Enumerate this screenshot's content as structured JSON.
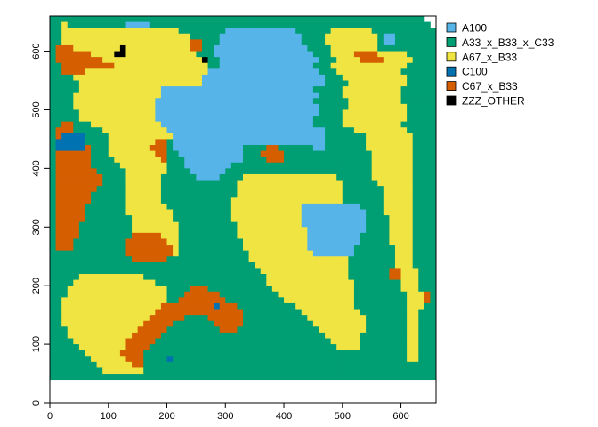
{
  "chart_data": {
    "type": "heatmap",
    "title": "",
    "xlabel": "",
    "ylabel": "",
    "xlim": [
      0,
      660
    ],
    "ylim": [
      0,
      660
    ],
    "x_ticks": [
      0,
      100,
      200,
      300,
      400,
      500,
      600
    ],
    "y_ticks": [
      0,
      100,
      200,
      300,
      400,
      500,
      600
    ],
    "x_tick_labels": [
      "0",
      "100",
      "200",
      "300",
      "400",
      "500",
      "600"
    ],
    "y_tick_labels": [
      "0",
      "100",
      "200",
      "300",
      "400",
      "500",
      "600"
    ],
    "cell_size": 10,
    "legend_position": "right",
    "legend": [
      {
        "label": "A100",
        "color": "#56B4E9"
      },
      {
        "label": "A33_x_B33_x_C33",
        "color": "#009E73"
      },
      {
        "label": "A67_x_B33",
        "color": "#F0E442"
      },
      {
        "label": "C100",
        "color": "#0072B2"
      },
      {
        "label": "C67_x_B33",
        "color": "#D55E00"
      },
      {
        "label": "ZZZ_OTHER",
        "color": "#000000"
      }
    ],
    "rows_top_to_bottom": [
      "BBBBBBBBBBBBBBBBBBBBBBBBBBBBBBBBBBBBBBBBBBBBBBBBBBBBBBBBBBBBBBBB",
      "BBCBBBBBBBBBBAAAABBBBBBBBBBBBBBBBBBBBBBBBBBBBBBBBBBBBBBBBBBBBBBBB",
      "BBCCCCCCCCCCCCCCCCCCCCBBBBBBBBAAAAAAAAAAAABBBBBBCCCCCCCBBBBBBBBBBB",
      "BBCCCCCCCCCCCCCCCCCCCCCCBBBBBAAAAAAAAAAAAAABBBBCCCCCCCCCBAABBBBBBB",
      "BBCCCCCCCCCCCCCCCCCCCCCCEEBBBAAAAAAAAAAAAAABBBBCCCCCCCCCBAABBBBBBB",
      "BEEECCCCCCCCFCCCCCCCCCCCEEBBAAAAAAAAAAAAAAAABBBBCCCCCCCCBBBBBBBBBB",
      "BEEEEEECCCCFFCCCCCCCCCCCCBBBAAAAAAAAAAAAAAAAABBBCCCCEEEECCCCCBBBBB",
      "BEEEEEEEECCCCCCCCCCCCCCCCCFBBAAAAAAAAAAAAAAAAABBBCCCCEEEECCCCCBBBB",
      "BBEEEEEEEEECCCCCCCCCCCCCCCCBBAAAAAAAAAAAAAAAABBBCCCCCCCCCCCCCBBBBB",
      "BBEEEECCCCCCCCCCCCCCCCCCCCCAAAAAAAAAAAAAAAAAAABBBCCCCCCCCCCCBBBBBB",
      "BBBBCCCCCCCCCCCCCCCCCCCCCCAAAAAAAAAAAAAAAAAAAAABBBCCCCCCCCCCCBBBBB",
      "BBBBBCCCCCCCCCCCCCCCCCCCCCAAAAAAAAAAAAAAAAAAAAABBBBCCCCCCCCCCBBBBB",
      "BBBBBCCCCCCCCCCCCCCAAAAAAAAAAAAAAAAAAAAAAAAAABBBBBCCCCCCCCCCBBBBBB",
      "BBBBCCCCCCCCCCCCCCCAAAAAAAAAAAAAAAAAAAAAAAAAAABBBBCCCCCCCCCCBBBBBB",
      "BBBBCCCCCCCCCCCCCCAAAAAAAAAAAAAAAAAAAAAAAAAAABBBBBBCCCCCCCCCBBBBBB",
      "BBBBCCCCCCCCCCCCCCAAAAAAAAAAAAAAAAAAAAAAAAAAAABBBBBCCCCCCCCCCBBBBB",
      "BBBBBCCCCCCCCCCCCCAAAAAAAAAAAAAAAAAAAAAAAAAAAABBBBCCCCCCCCCCCBBBBB",
      "BBBBBCCCCCCCCCCCCCAAAAAAAAAAAAAAAAAAAAAAAAAAABBBBBCCCCCCCCCCCBBBBB",
      "BBEEBBBCCCCCCCCCCCCAAAAAAAAAAAAAAAAAAAAAAAAAABBBBBCCCCCCCCCCBBBBBB",
      "BEEEBBBBBCCCCCCCCCCCAAAAAAAAAAAAAAAAAAAAAAAAAAABBBBBCCCCCCCCCBBBBB",
      "BEDDDDBBBBCCCCCCCCCCCAAAAAAAAAAAAAAAAAAAAAAAAAABBBBBBBCCCCCCCCBBBB",
      "BDDDDDBBBBCCCCCCCCEEBAAAAAAAAAAAAAAAAAAAAAAAAAABBBBBBBCCCCCCCCBBBB",
      "BDDDDDEBBBCCCCCCCEEEBAAAAAAAAAAAABBBBEEBBBBBBAABBBBBBBCCCCCCCCBBBB",
      "BEEEEEEBBBCCCCCCCCEEBBAAAAAAAAAAABBBEEEEBBBBBBBBBBBBBBBCCCCCCCBBBB",
      "BEEEEEEBBBBCCCCCCCCEBBBAAAAAAAAAABBBBEEEBBBBBBBBBBBBBBBCCCCCCCBBBB",
      "BEEEEEEBBBBBCCCCCCCCBBBAAAAAAAABBBBBBBBBBBBBBBBBBBBBBBBCCCCCCCBBBB",
      "BEEEEEEEBBBBBCCCCCCCBBBBAAAAAABBBBBBBBBBBBBBBBBBBBBBBBBCCCCCCCBBBB",
      "BEEEEEEEEBBBBCCCCCCBBBBBBAAAABBBBCCCCCCCCCCCCCCCCBBBBBBCCCCCCCBBBB",
      "BEEEEEEEEBBBBCCCCCCBBBBBBBBBBBBBCCCCCCCCCCCCCCCCCCBBBBBBCCCCCCBBBB",
      "BEEEEEEEBBBBBCCCCCCBBBBBBBBBBBBBCCCCCCCCCCCCCCCCCCBBBBBBBCCCCCBBBB",
      "BEEEEEEBBBBBBCCCCCCBBBBBBBBBBBBBCCCCCCCCCCCCCCCCCCBBBBBBBCCCCCBBBB",
      "BEEEEEEBBBBBBCCCCCCBBBBBBBBBBBBCCCCCCCCCCCCCCCCCCCBBBBBBBCCCCCBBBB",
      "BEEEEEBBBBBBBCCCCCCCBBBBBBBBBBBCCCCCCCCCCCCAAAAAAAAAABBBBCCCCCBBBB",
      "BEEEEEBBBBBBBCCCCCCCCBBBBBBBBBBCCCCCCCCCCCCAAAAAAAAAAABBBCCCCCBBBB",
      "BEEEEEBBBBBBBBCCCCCCCBBBBBBBBBBCCCCCCCCCCCCAAAAAAAAAAABBBBCCCCBBBB",
      "BEEEEBBBBBBBBBCCCCCCCCBBBBBBBBBBCCCCCCCCCCCAAAAAAAAAAABBBBCCCCBBBB",
      "BEEEEBBBBBBBBBCCCCCCCCBBBBBBBBBBCCCCCCCCCCCCAAAAAAAAAABBBBCCCCBBBB",
      "BEEEEBBBBBBBBBEEEEECCCBBBBBBBBBBCCCCCCCCCCCCAAAAAAAAABBBBBCCCCBBBB",
      "BEEEBBBBBBBBBEEEEEEECCBBBBBBBBBBBCCCCCCCCCCCAAAAAAAAABBBBBCCCCBBBB",
      "BEEEBBBBBBBBBEEEEEEEECBBBBBBBBBBBCCCCCCCCCCCAAAAAAAABBBBBBBCCCBBBB",
      "BBBBBBBBBBBBBEEEEEEEECBBBBBBBBBBBBCCCCCCCCCCCAAAAAAABBBBBBBCCCBBBB",
      "BBBBBBBBBBBBBBEEEEEEBBBBBBBBBBBBBBCCCCCCCCCCCCCCCCCBBBBBBBBCCCBBBB",
      "BBBBBBBBBBBBBBBBBBBBBBBBBBBBBBBBBBBCCCCCCCCCCCCCCCCBBBBBBBBCCCBBBB",
      "BBBBBBBBBBBBBBBBBBBBBBBBBBBBBBBBBBBBCCCCCCCCCCCCCCCBBBBBBBEECCCBBB",
      "BBBBBCCCCCCCCCCCBBBBBBBBBBBBBBBBBBBBBCCCCCCCCCCCCCCBBBBBBBEECCCBBB",
      "BBBBCCCCCCCCCCCCCCBBBBBBBBBBBBBBBBBBBCCCCCCCCCCCCCCCBBBBBBBBCCCBBB",
      "BBBCCCCCCCCCCCCCCCCCBBBBEEEBBBBBBBBBBBCCCCCCCCCCCCCCBBBBBBBBCCCBBB",
      "BBBCCCCCCCCCCCCCCCCCBBBEEEEEEBBBBBBBBBBCCCCCCCCCCCCCBBBBBBBBBCCCEB",
      "BBCCCCCCCCCCCCCCCCCCBBEEEEEEEEBBBBBBBBBBCCCCCCCCCCCCBBBBBBBBBCCCEB",
      "BBCCCCCCCCCCCCCCCCCEEEEEEEEEDEEEBBBBBBBBBBCCCCCCCCCCBBBBBBBBBCCCBB",
      "BBCCCCCCCCCCCCCCCCEEEEEEEEEEEEEEEBBBBBBBBBBCCCCCCCCCCBBBBBBBBCCBBB",
      "BBCCCCCCCCCCCCCCCEEEEEEBBBBEEEEEEBBBBBBBBBBBCCCCCCCCCCBBBBBBBCCBBB",
      "BBCCCCCCCCCCCCCCEEEEEBBBBBBBEEEEEBBBBBBBBBBBBCCCCCCCCCBBBBBBBCCBBB",
      "BBBCCCCCCCCCCCCEEEEEBBBBBBBBBEEEBBBBBBBBBBBBBBCCCCCCCCBBBBBBBCCBBB",
      "BBBCCCCCCCCCCCEEEEEBBBBBBBBBBBBBBBBBBBBBBBBBBBBCCCCCCBBBBBBBBCCBBB",
      "BBBBCCCCCCCCCEEEEEBBBBBBBBBBBBBBBBBBBBBBBBBBBBBBCCCCCBBBBBBBBCCBBB",
      "BBBBBCCCCCCCCEEEEBBBBBBBBBBBBBBBBBBBBBBBBBBBBBBBBCCCCBBBBBBBBCCBBB",
      "BBBBBBCCCCCCEEEEBBBBBBBBBBBBBBBBBBBBBBBBBBBBBBBBBBBBBBBBBBBBBCCBBB",
      "BBBBBBBCCCCCCEEEBBBBDBBBBBBBBBBBBBBBBBBBBBBBBBBBBBBBBBBBBBBBBCCBBB",
      "BBBBBBBBCCCCCCEEBBBBBBBBBBBBBBBBBBBBBBBBBBBBBBBBBBBBBBBBBBBBBBBBBB",
      "BBBBBBBBBCCCCCCCBBBBBBBBBBBBBBBBBBBBBBBBBBBBBBBBBBBBBBBBBBBBBBBBBB",
      "BBBBBBBBBBBBBBBBBBBBBBBBBBBBBBBBBBBBBBBBBBBBBBBBBBBBBBBBBBBBBBBBBB"
    ]
  }
}
